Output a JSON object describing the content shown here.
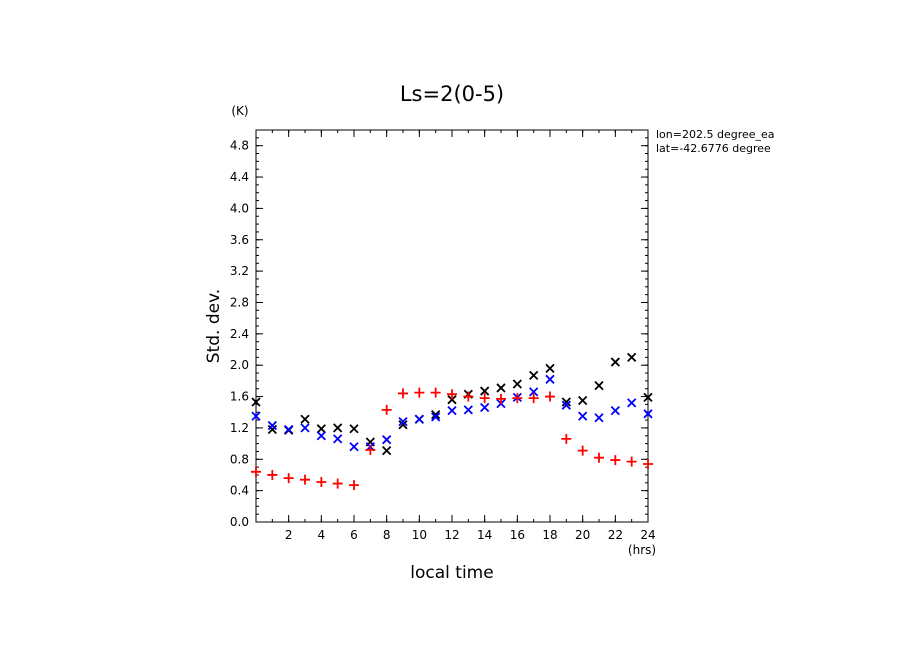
{
  "chart_data": {
    "type": "scatter",
    "title": "Ls=2(0-5)",
    "xlabel": "local time",
    "ylabel": "Std. dev.",
    "x_unit": "(hrs)",
    "y_unit": "(K)",
    "xlim": [
      0,
      24
    ],
    "ylim": [
      0,
      5.0
    ],
    "x_ticks": [
      2,
      4,
      6,
      8,
      10,
      12,
      14,
      16,
      18,
      20,
      22,
      24
    ],
    "x_tick_labels": [
      "2",
      "4",
      "6",
      "8",
      "10",
      "12",
      "14",
      "16",
      "18",
      "20",
      "22",
      "24"
    ],
    "y_ticks": [
      0.0,
      0.4,
      0.8,
      1.2,
      1.6,
      2.0,
      2.4,
      2.8,
      3.2,
      3.6,
      4.0,
      4.4,
      4.8
    ],
    "y_tick_labels": [
      "0.0",
      "0.4",
      "0.8",
      "1.2",
      "1.6",
      "2.0",
      "2.4",
      "2.8",
      "3.2",
      "3.6",
      "4.0",
      "4.4",
      "4.8"
    ],
    "annotations": [
      "lon=202.5 degree_ea",
      "lat=-42.6776 degree"
    ],
    "grid": false,
    "series": [
      {
        "marker": "x",
        "color": "#000000",
        "x": [
          0,
          1,
          2,
          3,
          4,
          5,
          6,
          7,
          8,
          9,
          10,
          11,
          12,
          13,
          14,
          15,
          16,
          17,
          18,
          19,
          20,
          21,
          22,
          23,
          24
        ],
        "y": [
          1.53,
          1.18,
          1.17,
          1.31,
          1.19,
          1.2,
          1.19,
          1.02,
          0.91,
          1.24,
          1.31,
          1.37,
          1.56,
          1.63,
          1.67,
          1.71,
          1.76,
          1.87,
          1.96,
          1.53,
          1.55,
          1.74,
          2.04,
          2.1,
          1.59
        ]
      },
      {
        "marker": "x",
        "color": "#0000ff",
        "x": [
          0,
          1,
          2,
          3,
          4,
          5,
          6,
          7,
          8,
          9,
          10,
          11,
          12,
          13,
          14,
          15,
          16,
          17,
          18,
          19,
          20,
          21,
          22,
          23,
          24
        ],
        "y": [
          1.35,
          1.23,
          1.18,
          1.2,
          1.1,
          1.06,
          0.96,
          0.96,
          1.05,
          1.28,
          1.31,
          1.34,
          1.42,
          1.43,
          1.46,
          1.51,
          1.59,
          1.66,
          1.82,
          1.49,
          1.35,
          1.33,
          1.42,
          1.52,
          1.38
        ]
      },
      {
        "marker": "+",
        "color": "#ff0000",
        "x": [
          0,
          1,
          2,
          3,
          4,
          5,
          6,
          7,
          8,
          9,
          10,
          11,
          12,
          13,
          14,
          15,
          16,
          17,
          18,
          19,
          20,
          21,
          22,
          23,
          24
        ],
        "y": [
          0.64,
          0.6,
          0.56,
          0.54,
          0.51,
          0.49,
          0.47,
          0.92,
          1.43,
          1.64,
          1.65,
          1.65,
          1.63,
          1.6,
          1.58,
          1.57,
          1.58,
          1.58,
          1.6,
          1.06,
          0.91,
          0.82,
          0.79,
          0.77,
          0.74
        ]
      }
    ]
  }
}
